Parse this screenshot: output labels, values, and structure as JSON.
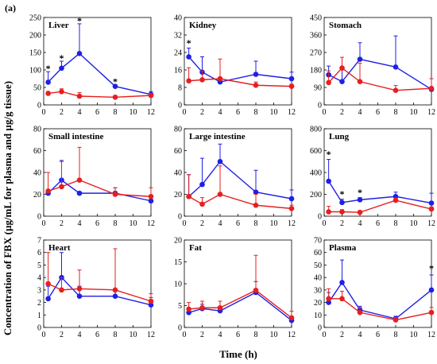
{
  "figure": {
    "label": "(a)",
    "xlabel": "Time (h)",
    "ylabel": "Concentration of FBX (µg/mL for plasma and µg/g tissue)",
    "colors": {
      "blue": "#1f1fe6",
      "red": "#e61f1f"
    }
  },
  "chart_data": [
    {
      "type": "line",
      "title": "Liver",
      "x": [
        0.5,
        2,
        4,
        8,
        12
      ],
      "xlim": [
        0,
        12
      ],
      "xticks": [
        0,
        2,
        4,
        6,
        8,
        10,
        12
      ],
      "ylim": [
        0,
        250
      ],
      "yticks": [
        0,
        50,
        100,
        150,
        200,
        250
      ],
      "series": [
        {
          "color": "blue",
          "values": [
            65,
            105,
            147,
            53,
            30
          ],
          "error": [
            30,
            20,
            85,
            5,
            8
          ]
        },
        {
          "color": "red",
          "values": [
            33,
            38,
            25,
            22,
            27
          ],
          "error": [
            5,
            8,
            10,
            5,
            6
          ]
        }
      ],
      "significance": [
        {
          "x": 0.5,
          "y": 95
        },
        {
          "x": 2,
          "y": 125
        },
        {
          "x": 4,
          "y": 232
        },
        {
          "x": 8,
          "y": 58
        }
      ]
    },
    {
      "type": "line",
      "title": "Kidney",
      "x": [
        0.5,
        2,
        4,
        8,
        12
      ],
      "xlim": [
        0,
        12
      ],
      "xticks": [
        0,
        2,
        4,
        6,
        8,
        10,
        12
      ],
      "ylim": [
        0,
        40
      ],
      "yticks": [
        0,
        8,
        16,
        24,
        32,
        40
      ],
      "series": [
        {
          "color": "blue",
          "values": [
            22,
            15,
            10.5,
            14,
            12
          ],
          "error": [
            4,
            7,
            1,
            6,
            3
          ]
        },
        {
          "color": "red",
          "values": [
            11,
            11.5,
            12,
            9,
            8.5
          ],
          "error": [
            6,
            4,
            9,
            1.5,
            1
          ]
        }
      ],
      "significance": [
        {
          "x": 0.5,
          "y": 27
        }
      ]
    },
    {
      "type": "line",
      "title": "Stomach",
      "x": [
        0.5,
        2,
        4,
        8,
        12
      ],
      "xlim": [
        0,
        12
      ],
      "xticks": [
        0,
        2,
        4,
        6,
        8,
        10,
        12
      ],
      "ylim": [
        0,
        450
      ],
      "yticks": [
        0,
        90,
        180,
        270,
        360,
        450
      ],
      "series": [
        {
          "color": "blue",
          "values": [
            155,
            120,
            235,
            195,
            80
          ],
          "error": [
            45,
            60,
            85,
            160,
            10
          ]
        },
        {
          "color": "red",
          "values": [
            115,
            190,
            120,
            75,
            85
          ],
          "error": [
            60,
            55,
            95,
            25,
            50
          ]
        }
      ],
      "significance": []
    },
    {
      "type": "line",
      "title": "Small intestine",
      "x": [
        0.5,
        2,
        4,
        8,
        12
      ],
      "xlim": [
        0,
        12
      ],
      "xticks": [
        0,
        2,
        4,
        6,
        8,
        10,
        12
      ],
      "ylim": [
        0,
        80
      ],
      "yticks": [
        0,
        20,
        40,
        60,
        80
      ],
      "series": [
        {
          "color": "blue",
          "values": [
            21,
            33,
            21,
            21,
            14
          ],
          "error": [
            3,
            18,
            0,
            5,
            1
          ]
        },
        {
          "color": "red",
          "values": [
            23,
            27,
            33,
            20,
            18
          ],
          "error": [
            17,
            23,
            30,
            6,
            8
          ]
        }
      ],
      "significance": []
    },
    {
      "type": "line",
      "title": "Large intestine",
      "x": [
        0.5,
        2,
        4,
        8,
        12
      ],
      "xlim": [
        0,
        12
      ],
      "xticks": [
        0,
        2,
        4,
        6,
        8,
        10,
        12
      ],
      "ylim": [
        0,
        80
      ],
      "yticks": [
        0,
        20,
        40,
        60,
        80
      ],
      "series": [
        {
          "color": "blue",
          "values": [
            18,
            29,
            50,
            22,
            16
          ],
          "error": [
            20,
            24,
            16,
            20,
            8
          ]
        },
        {
          "color": "red",
          "values": [
            18,
            11,
            20,
            10,
            7
          ],
          "error": [
            20,
            6,
            26,
            10,
            3
          ]
        }
      ],
      "significance": []
    },
    {
      "type": "line",
      "title": "Lung",
      "x": [
        0.5,
        2,
        4,
        8,
        12
      ],
      "xlim": [
        0,
        12
      ],
      "xticks": [
        0,
        2,
        4,
        6,
        8,
        10,
        12
      ],
      "ylim": [
        0,
        800
      ],
      "yticks": [
        0,
        200,
        400,
        600,
        800
      ],
      "series": [
        {
          "color": "blue",
          "values": [
            320,
            125,
            150,
            180,
            120
          ],
          "error": [
            200,
            30,
            20,
            40,
            90
          ]
        },
        {
          "color": "red",
          "values": [
            40,
            40,
            35,
            145,
            65
          ],
          "error": [
            50,
            20,
            15,
            20,
            20
          ]
        }
      ],
      "significance": [
        {
          "x": 0.5,
          "y": 540
        },
        {
          "x": 2,
          "y": 175
        },
        {
          "x": 4,
          "y": 190
        }
      ]
    },
    {
      "type": "line",
      "title": "Heart",
      "x": [
        0.5,
        2,
        4,
        8,
        12
      ],
      "xlim": [
        0,
        12
      ],
      "xticks": [
        0,
        2,
        4,
        6,
        8,
        10,
        12
      ],
      "ylim": [
        0,
        7
      ],
      "yticks": [
        0,
        1,
        2,
        3,
        4,
        5,
        6,
        7
      ],
      "series": [
        {
          "color": "blue",
          "values": [
            2.3,
            4.0,
            2.5,
            2.5,
            1.8
          ],
          "error": [
            1.0,
            2.0,
            0.8,
            0.6,
            0.6
          ]
        },
        {
          "color": "red",
          "values": [
            3.5,
            3.0,
            3.1,
            3.0,
            2.1
          ],
          "error": [
            2.5,
            1.0,
            1.5,
            3.3,
            0.6
          ]
        }
      ],
      "significance": []
    },
    {
      "type": "line",
      "title": "Fat",
      "x": [
        0.5,
        2,
        4,
        8,
        12
      ],
      "xlim": [
        0,
        12
      ],
      "xticks": [
        0,
        2,
        4,
        6,
        8,
        10,
        12
      ],
      "ylim": [
        0,
        20
      ],
      "yticks": [
        0,
        5,
        10,
        15,
        20
      ],
      "series": [
        {
          "color": "blue",
          "values": [
            3.4,
            4.3,
            3.8,
            8.0,
            1.6
          ],
          "error": [
            1.0,
            1.0,
            1.0,
            2.5,
            0.5
          ]
        },
        {
          "color": "red",
          "values": [
            4.2,
            4.5,
            4.5,
            8.5,
            2.2
          ],
          "error": [
            1.5,
            1.5,
            1.5,
            8.0,
            1.5
          ]
        }
      ],
      "significance": []
    },
    {
      "type": "line",
      "title": "Plasma",
      "x": [
        0.5,
        2,
        4,
        8,
        12
      ],
      "xlim": [
        0,
        12
      ],
      "xticks": [
        0,
        2,
        4,
        6,
        8,
        10,
        12
      ],
      "ylim": [
        0,
        70
      ],
      "yticks": [
        0,
        10,
        20,
        30,
        40,
        50,
        60,
        70
      ],
      "series": [
        {
          "color": "blue",
          "values": [
            20,
            36,
            14,
            7,
            30
          ],
          "error": [
            8,
            18,
            3,
            2,
            12
          ]
        },
        {
          "color": "red",
          "values": [
            23,
            23,
            12,
            6,
            12
          ],
          "error": [
            8,
            6,
            4,
            2,
            4
          ]
        }
      ],
      "significance": [
        {
          "x": 12,
          "y": 45
        }
      ]
    }
  ]
}
